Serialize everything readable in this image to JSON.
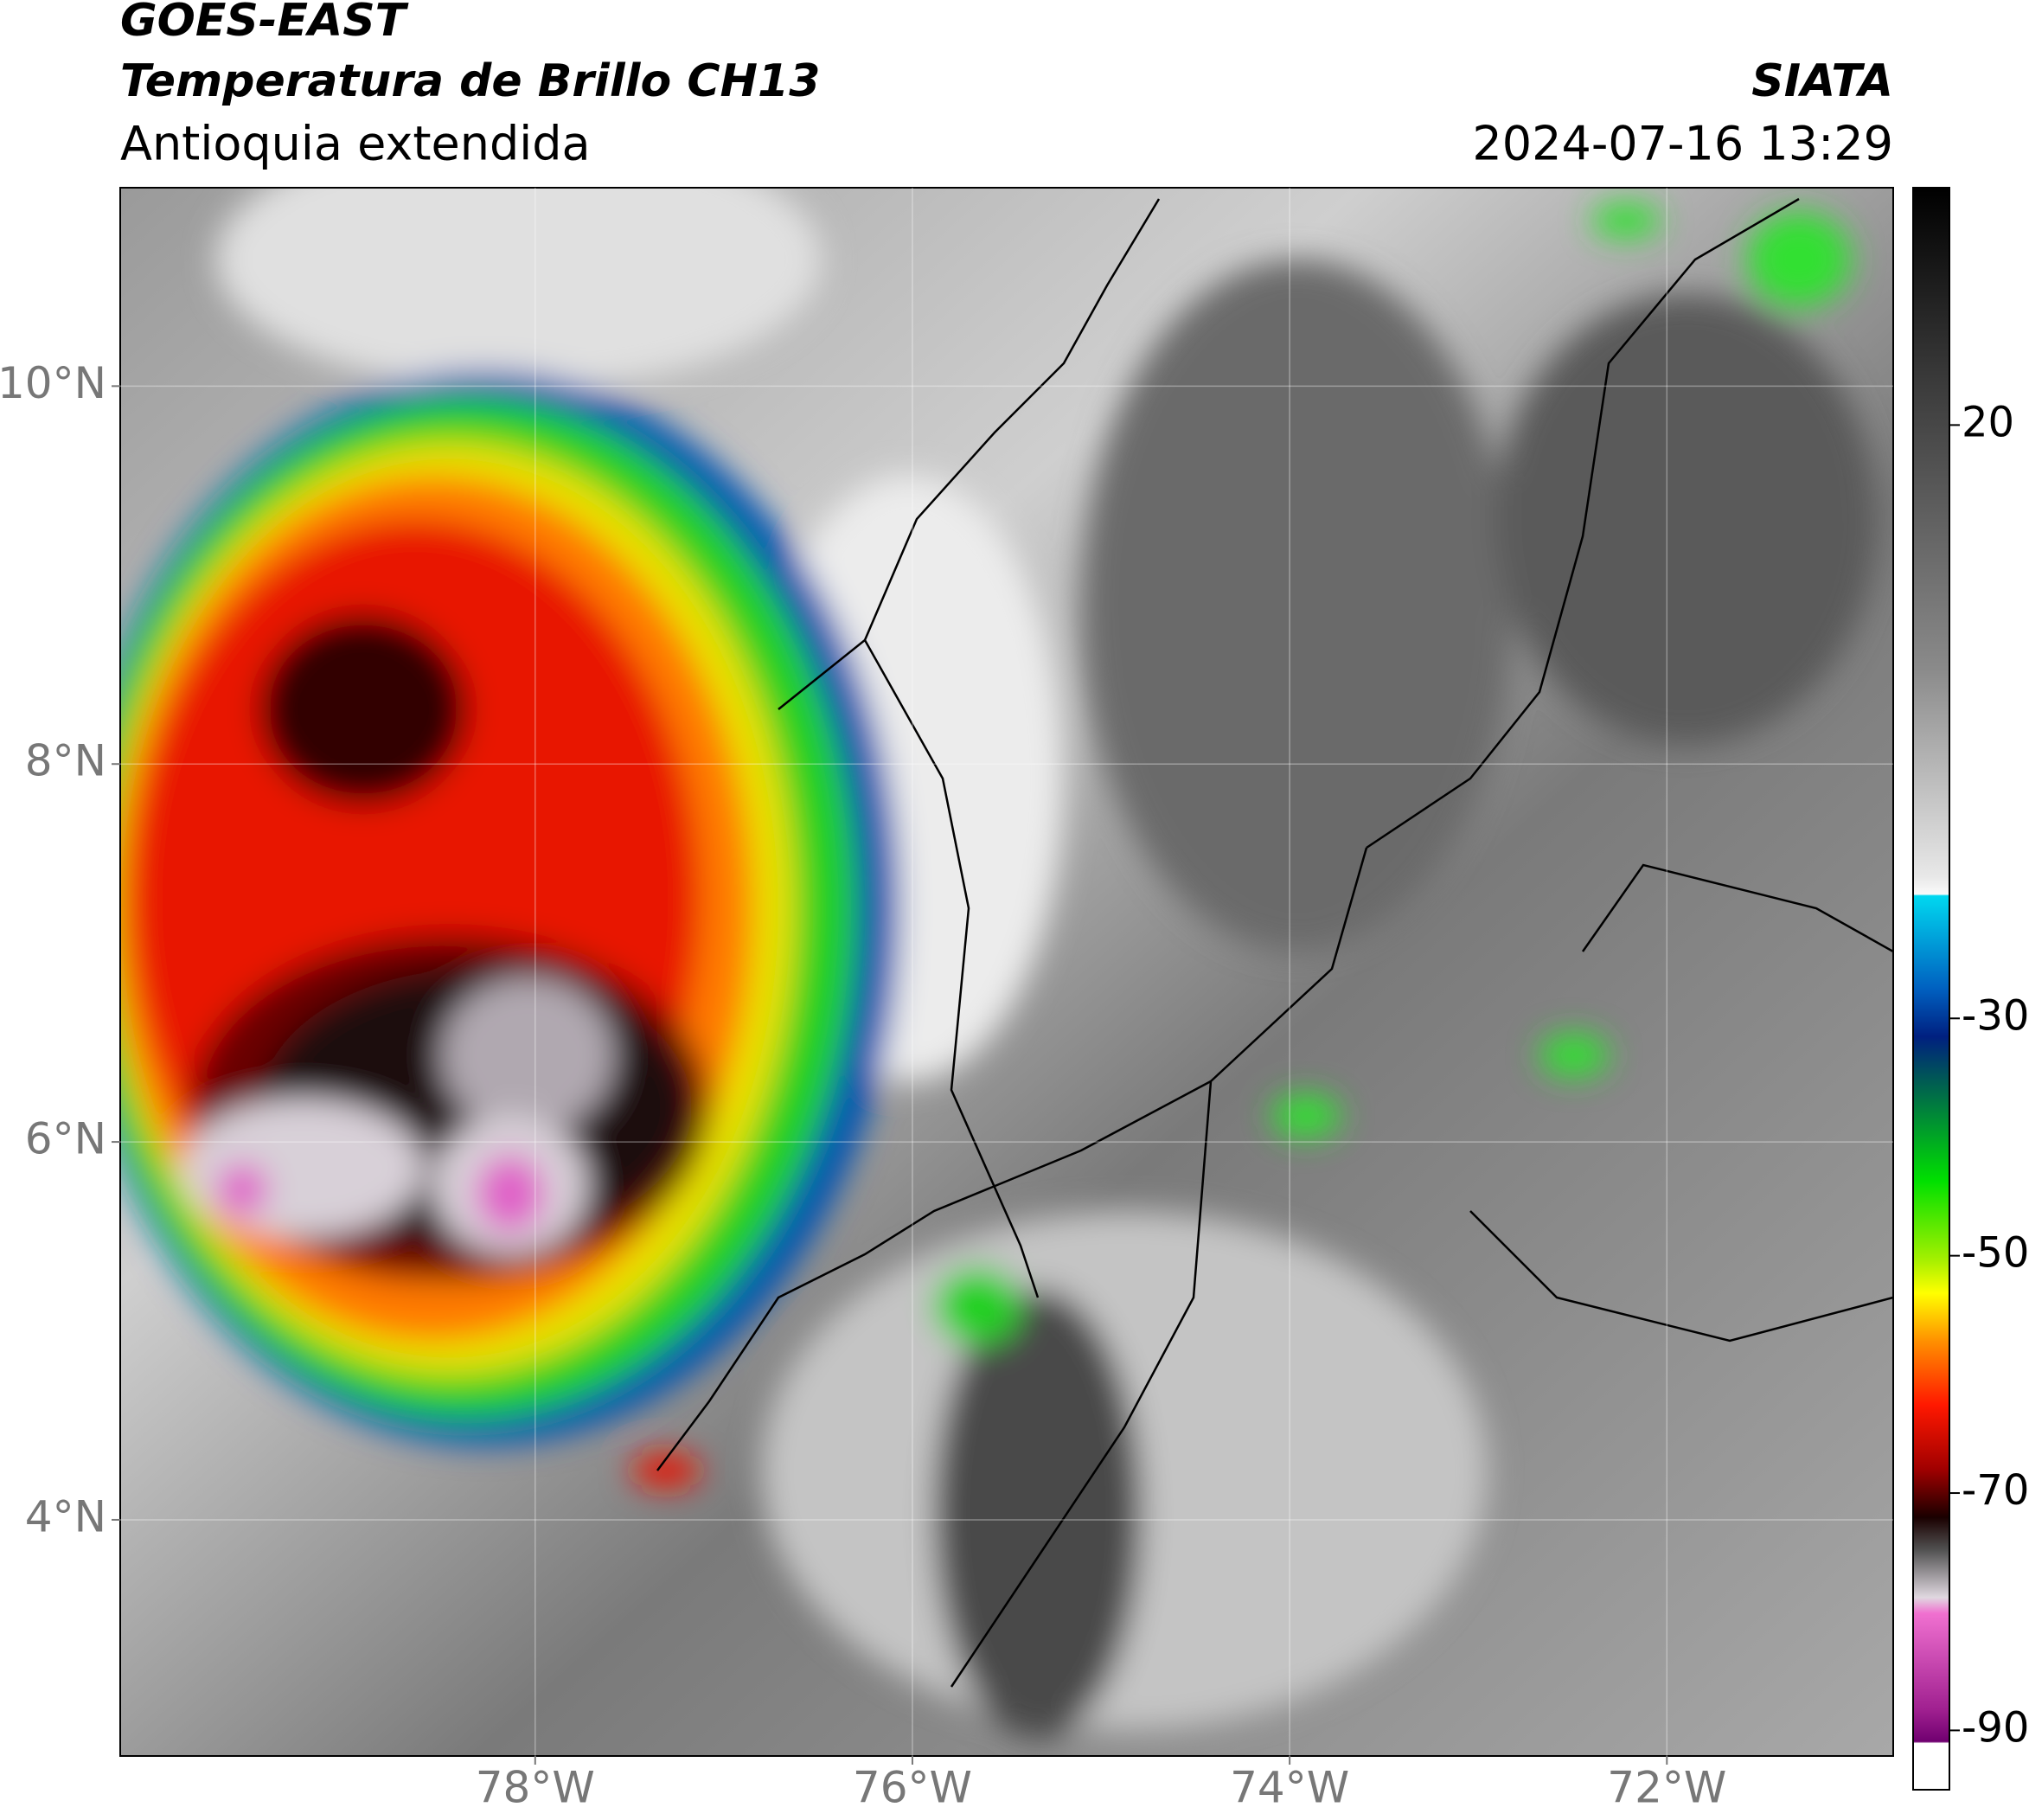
{
  "header": {
    "title": "GOES-EAST",
    "subtitle": "Temperatura de Brillo CH13",
    "region": "Antioquia extendida",
    "agency": "SIATA",
    "timestamp": "2024-07-16 13:29"
  },
  "map": {
    "xlim": [
      -80.2,
      -70.8
    ],
    "ylim": [
      2.75,
      11.05
    ],
    "xticks": [
      {
        "value": -78,
        "label": "78°W"
      },
      {
        "value": -76,
        "label": "76°W"
      },
      {
        "value": -74,
        "label": "74°W"
      },
      {
        "value": -72,
        "label": "72°W"
      }
    ],
    "yticks": [
      {
        "value": 4,
        "label": "4°N"
      },
      {
        "value": 6,
        "label": "6°N"
      },
      {
        "value": 8,
        "label": "8°N"
      },
      {
        "value": 10,
        "label": "10°N"
      }
    ]
  },
  "colorbar": {
    "lim": [
      -95,
      40
    ],
    "ticks": [
      20,
      -30,
      -50,
      -70,
      -90
    ]
  }
}
